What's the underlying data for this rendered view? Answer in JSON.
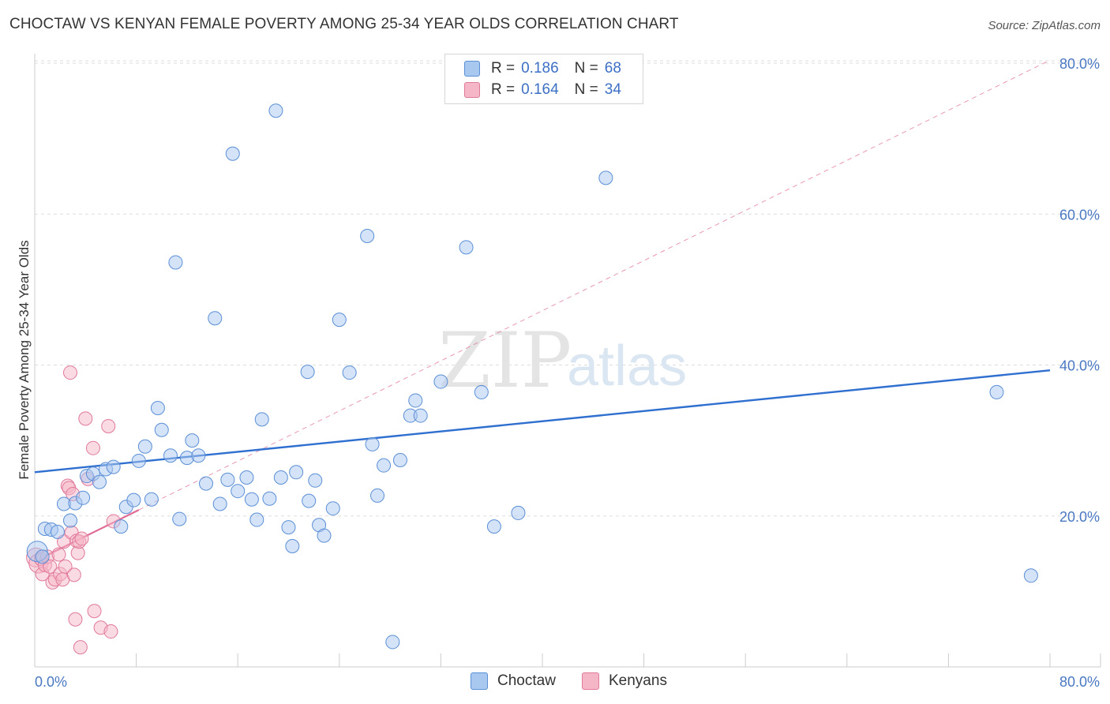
{
  "header": {
    "title": "CHOCTAW VS KENYAN FEMALE POVERTY AMONG 25-34 YEAR OLDS CORRELATION CHART",
    "source": "Source: ZipAtlas.com"
  },
  "watermark": {
    "zip": "ZIP",
    "atlas": "atlas"
  },
  "legend": {
    "rows": [
      {
        "r_label": "R =",
        "r_value": "0.186",
        "n_label": "N =",
        "n_value": "68",
        "color": "#a9c8f0"
      },
      {
        "r_label": "R =",
        "r_value": "0.164",
        "n_label": "N =",
        "n_value": "34",
        "color": "#f5b6c8"
      }
    ]
  },
  "bottom_legend": [
    {
      "label": "Choctaw",
      "color": "#a9c8f0"
    },
    {
      "label": "Kenyans",
      "color": "#f5b6c8"
    }
  ],
  "colors": {
    "choctaw_fill": "#a9c8f0",
    "choctaw_stroke": "#5b8fd6",
    "choctaw_line": "#2f6fcf",
    "kenyans_fill": "#f5b6c8",
    "kenyans_stroke": "#e07a9a",
    "kenyans_line": "#e06b94",
    "grid": "#dddddd",
    "tick_text": "#4a78c2"
  },
  "chart_data": {
    "type": "scatter",
    "title": "CHOCTAW VS KENYAN FEMALE POVERTY AMONG 25-34 YEAR OLDS CORRELATION CHART",
    "xlabel": "",
    "ylabel": "Female Poverty Among 25-34 Year Olds",
    "xlim": [
      0,
      80
    ],
    "ylim": [
      0,
      80
    ],
    "x_tick_labels": [
      "0.0%",
      "80.0%"
    ],
    "y_tick_values": [
      20,
      40,
      60,
      80
    ],
    "y_tick_labels": [
      "20.0%",
      "40.0%",
      "60.0%",
      "80.0%"
    ],
    "grid": true,
    "legend_position": "top-center",
    "series": [
      {
        "name": "Choctaw",
        "R": 0.186,
        "N": 68,
        "trend": {
          "x": [
            0,
            80
          ],
          "y": [
            25.8,
            39.3
          ]
        },
        "points": [
          [
            0.2,
            15.3
          ],
          [
            0.6,
            14.6
          ],
          [
            0.8,
            18.3
          ],
          [
            1.3,
            18.2
          ],
          [
            1.8,
            17.9
          ],
          [
            2.3,
            21.6
          ],
          [
            2.8,
            19.4
          ],
          [
            3.2,
            21.7
          ],
          [
            3.8,
            22.4
          ],
          [
            4.1,
            25.3
          ],
          [
            4.6,
            25.6
          ],
          [
            5.1,
            24.5
          ],
          [
            5.6,
            26.2
          ],
          [
            6.2,
            26.5
          ],
          [
            6.8,
            18.6
          ],
          [
            7.2,
            21.2
          ],
          [
            7.8,
            22.1
          ],
          [
            8.2,
            27.3
          ],
          [
            8.7,
            29.2
          ],
          [
            9.2,
            22.2
          ],
          [
            9.7,
            34.3
          ],
          [
            10.0,
            31.4
          ],
          [
            10.7,
            28.0
          ],
          [
            11.4,
            19.6
          ],
          [
            12.0,
            27.7
          ],
          [
            12.4,
            30.0
          ],
          [
            12.9,
            28.0
          ],
          [
            13.5,
            24.3
          ],
          [
            14.2,
            46.2
          ],
          [
            14.6,
            21.6
          ],
          [
            15.2,
            24.8
          ],
          [
            11.1,
            53.6
          ],
          [
            15.6,
            68.0
          ],
          [
            16.0,
            23.3
          ],
          [
            16.7,
            25.1
          ],
          [
            17.1,
            22.2
          ],
          [
            17.5,
            19.5
          ],
          [
            17.9,
            32.8
          ],
          [
            18.5,
            22.3
          ],
          [
            19.0,
            73.7
          ],
          [
            19.4,
            25.1
          ],
          [
            20.0,
            18.5
          ],
          [
            20.3,
            16.0
          ],
          [
            20.6,
            25.8
          ],
          [
            21.5,
            39.1
          ],
          [
            21.6,
            22.0
          ],
          [
            22.1,
            24.7
          ],
          [
            22.4,
            18.8
          ],
          [
            22.8,
            17.4
          ],
          [
            23.5,
            21.0
          ],
          [
            24.0,
            46.0
          ],
          [
            24.8,
            39.0
          ],
          [
            26.2,
            57.1
          ],
          [
            26.6,
            29.5
          ],
          [
            27.0,
            22.7
          ],
          [
            27.5,
            26.7
          ],
          [
            28.2,
            3.3
          ],
          [
            28.8,
            27.4
          ],
          [
            29.6,
            33.3
          ],
          [
            30.0,
            35.3
          ],
          [
            30.4,
            33.3
          ],
          [
            32.0,
            37.8
          ],
          [
            34.0,
            55.6
          ],
          [
            35.2,
            36.4
          ],
          [
            36.2,
            18.6
          ],
          [
            38.1,
            20.4
          ],
          [
            45.0,
            64.8
          ],
          [
            75.8,
            36.4
          ],
          [
            78.5,
            12.1
          ]
        ]
      },
      {
        "name": "Kenyans",
        "R": 0.164,
        "N": 34,
        "trend": {
          "x": [
            0,
            8.2
          ],
          "y": [
            14.0,
            20.8
          ],
          "extended_x": [
            8.2,
            80
          ],
          "extended_y": [
            20.8,
            80.4
          ]
        },
        "points": [
          [
            0.1,
            14.5
          ],
          [
            0.3,
            13.7
          ],
          [
            0.5,
            14.3
          ],
          [
            0.6,
            12.3
          ],
          [
            0.8,
            13.5
          ],
          [
            1.0,
            14.6
          ],
          [
            1.2,
            13.3
          ],
          [
            1.4,
            11.2
          ],
          [
            1.6,
            11.6
          ],
          [
            1.9,
            14.9
          ],
          [
            2.0,
            12.3
          ],
          [
            2.2,
            11.6
          ],
          [
            2.3,
            16.6
          ],
          [
            2.4,
            13.3
          ],
          [
            2.6,
            24.0
          ],
          [
            2.7,
            23.7
          ],
          [
            2.8,
            39.0
          ],
          [
            2.9,
            17.8
          ],
          [
            3.0,
            22.9
          ],
          [
            3.1,
            12.2
          ],
          [
            3.2,
            6.3
          ],
          [
            3.3,
            16.7
          ],
          [
            3.4,
            15.1
          ],
          [
            3.5,
            16.6
          ],
          [
            3.6,
            2.6
          ],
          [
            3.7,
            17.0
          ],
          [
            4.0,
            32.9
          ],
          [
            4.2,
            24.9
          ],
          [
            4.6,
            29.0
          ],
          [
            4.7,
            7.4
          ],
          [
            5.2,
            5.2
          ],
          [
            5.8,
            31.9
          ],
          [
            6.0,
            4.7
          ],
          [
            6.2,
            19.3
          ]
        ]
      }
    ]
  }
}
